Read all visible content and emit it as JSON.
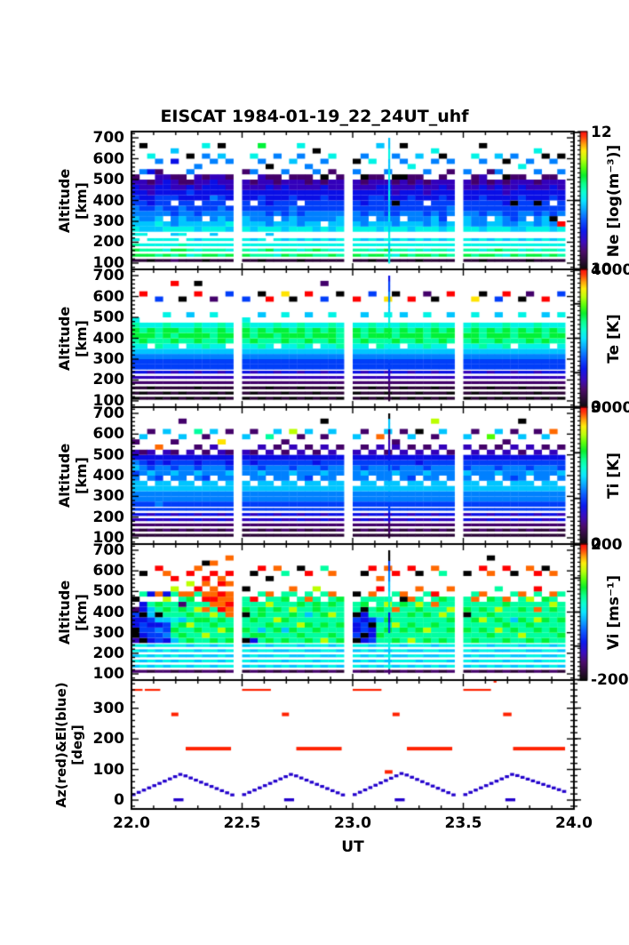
{
  "title": "EISCAT 1984-01-19_22_24UT_uhf",
  "x_axis": {
    "label": "UT",
    "tick_labels": [
      "22.0",
      "22.5",
      "23.0",
      "23.5",
      "24.0"
    ],
    "ticks": [
      22.0,
      22.5,
      23.0,
      23.5,
      24.0
    ],
    "minor_step": 0.1,
    "range": [
      22.0,
      24.0
    ]
  },
  "alt_axis": {
    "ylabel_lines": [
      "Altitude",
      "[km]"
    ],
    "ticks": [
      100,
      200,
      300,
      400,
      500,
      600,
      700
    ],
    "tick_labels": [
      "100",
      "200",
      "300",
      "400",
      "500",
      "600",
      "700"
    ],
    "minor_step": 20,
    "range": [
      70,
      730
    ]
  },
  "time_blocks": [
    22.0,
    22.5,
    23.0,
    23.5
  ],
  "block_duration": 0.46,
  "cols_per_block": 13,
  "encoding": {
    "chars": "0123456789abcdef",
    "empty": ".",
    "alt_base_km": 100,
    "alt_step_km": 25,
    "note": "each string is one time column, chars from 100 km (first) to 700 km (last); char index i maps to value = min + (i/15)*(max-min) of the panel value_range"
  },
  "colormap_stops": [
    {
      "f": 0.0,
      "c": "#000000"
    },
    {
      "f": 0.06,
      "c": "#24002e"
    },
    {
      "f": 0.13,
      "c": "#440066"
    },
    {
      "f": 0.2,
      "c": "#3300bb"
    },
    {
      "f": 0.28,
      "c": "#0011ee"
    },
    {
      "f": 0.36,
      "c": "#0055ff"
    },
    {
      "f": 0.44,
      "c": "#00aaff"
    },
    {
      "f": 0.5,
      "c": "#00e6ff"
    },
    {
      "f": 0.56,
      "c": "#00ffd0"
    },
    {
      "f": 0.62,
      "c": "#00ff88"
    },
    {
      "f": 0.68,
      "c": "#00ee22"
    },
    {
      "f": 0.74,
      "c": "#55ff00"
    },
    {
      "f": 0.8,
      "c": "#bbff00"
    },
    {
      "f": 0.86,
      "c": "#ffee00"
    },
    {
      "f": 0.91,
      "c": "#ff9900"
    },
    {
      "f": 0.96,
      "c": "#ff3300"
    },
    {
      "f": 1.0,
      "c": "#ff0000"
    }
  ],
  "chart_data": [
    {
      "id": "ne",
      "type": "heatmap",
      "value_range": [
        10,
        12
      ],
      "colorbar": {
        "title": "Ne [log(m⁻³)]",
        "top_label": "12",
        "bottom_label": "10",
        "tick_values": [
          10,
          11,
          12
        ]
      },
      "thin_line": {
        "t": 23.165,
        "values": "887788778877887788778877"
      },
      "cells": [
        "1aa98887766554432.......",
        "1a98.87766554433.6....0.",
        "0a988.7766544332.4..8...",
        "19988.787665544332.6....",
        "1a888.87.65554443.......",
        "29a88786655.54332..4.7..",
        "1aa9.887766544322.......",
        "18988.8766554542.6..0...",
        "19887.77655.44333.6.....",
        "0a988.87.65544432...6.8.",
        "1a988787665564443..6....",
        "19988.87766554433...7.0.",
        "1a888.78665.44332..6....",
        "1a988.8776554433.2......",
        "19887.77665.4432.6..8...",
        "09988.87665554333..6..a.",
        "19a8.786655444432.0.....",
        "18888.87.65544322...6...",
        "1a987.7765554443.6......",
        "19988.87766554332..7....",
        "0a887.86655.44332...6.8.",
        "1a988.87665544322.6.....",
        "19a87.7766554433.6...0..",
        "19988.8.665554420..6....",
        "1a887.7766554433.2..8...",
        "19888.87765544332.......",
        "1a988.8766554433.6.0....",
        "19987.86655444320...6...",
        "0a888.87.65554332..8....",
        "1a987.77665554432.....7.",
        "19a88.8765554443.6......",
        "18987.86655043320...6...",
        "1a988.87.65544330..6..0.",
        "19887.77665554322.8.....",
        "0a988.87665544432...7...",
        "1a887.86655.4332.6......",
        "19988.8776554433...6.8..",
        "1a987.76555554432...0...",
        "19888.87.6654433.2.6....",
        "1a988.8776554433.6......",
        "19987.86665544322...8...",
        "0a888.76655554433..6..0.",
        "1a987.87.6554432.2......",
        "19a88.8776554443.6..7...",
        "18987.86655443320..0....",
        "1a988.76555044332...6...",
        "19887.77665554432.8.....",
        "0a988.87.6554433...6....",
        "1a887.8665504432.6...8..",
        "19988.87765544332...0...",
        "1a987.76055.54432..6....",
        "19888.8f.6554433.6..0..."
      ]
    },
    {
      "id": "te",
      "type": "heatmap",
      "value_range": [
        0,
        4000
      ],
      "colorbar": {
        "title": "Te [K]",
        "top_label": "4000",
        "bottom_label": "0",
        "tick_values": [
          0,
          1000,
          2000,
          3000,
          4000
        ]
      },
      "thin_line": {
        "t": 23.165,
        "values": "112234556789aa9887766554"
      },
      "cells": [
        "011234556789aa98........",
        "10123455678aa98.....f...",
        "1102335567.9aa8.........",
        "011234556799998....5....",
        "101234556789aa9.8.......",
        "01123355678a9a8.......f.",
        "1012345567.9a98....0....",
        "011234556789a98.7.......",
        "11023355678aaa9.....f.0.",
        "011234556799a98.........",
        "101234556789998.8..2....",
        "01123355678aaa9.........",
        "1012345567.9a98.....5...",
        "011234556789aa98...5....",
        "10123355678a998.........",
        "011234556799aa8.7...0...",
        "110234556789a98....f....",
        "0112335567.99a9.........",
        "10123455678aaa8.8...d...",
        "011234556789a98....0....",
        "110233556799aa9.........",
        "01123455678a998.7...f...",
        "1012345567.9aa8.........",
        "011233556789a98....5..2.",
        "11023455678aaa9.8.......",
        "011234556799998.....0...",
        "101234556789aa8....f....",
        "01123355678a998.7.......",
        "1102345567.9aa9.....5...",
        "011234556799a98.........",
        "101233556789aa8.8..d....",
        "01123455678a998.....0...",
        "1102345567.9aa9.7.......",
        "011233556789a98....f....",
        "10123455678aaa8.........",
        "011234556799998.8...2...",
        "110233556789aa9....0....",
        "01123455678aa98.........",
        "1012345567.9aa8.7...f...",
        "011233556789a98.........",
        "10123455678aaa9.8..d....",
        "011234556799998.....0...",
        "110233556789aa8.........",
        "01123455678aa98.7..5....",
        "101234556799aa9.....f...",
        "0112335567.9998.........",
        "110234556789aa8.8..0....",
        "01123455678aa98.....2...",
        "101233556789aa9.........",
        "01123455678a998.7..f....",
        "1102345567.9aa8.........",
        "011234556789a98.8...5..."
      ]
    },
    {
      "id": "ti",
      "type": "heatmap",
      "value_range": [
        0,
        3000
      ],
      "colorbar": {
        "title": "Ti [K]",
        "top_label": "3000",
        "bottom_label": "0",
        "tick_values": [
          0,
          1000,
          2000,
          3000
        ]
      },
      "thin_line": {
        "t": 23.165,
        "values": "122345566776655443322770"
      },
      "cells": [
        "12234556677657643.2.....",
        "11234556677.66542..7....",
        "1224355667.675443...2...",
        "1123456667756654.e......",
        "12234556677.66443...7...",
        "1124355667.675542.2.....",
        "1223455667766654...7..2.",
        "11234556677.66543.......",
        "1224355667.67544.2..9...",
        "11234556677566542..2....",
        "12234556677.6654.3..7...",
        "1124355667.666543.d.....",
        "12234556677675442...2...",
        "11234556677.66543..7....",
        "1224355667.666442...2...",
        "1123455667767554.3......",
        "12234556677.66543..9....",
        "1124355667.66654.2..7...",
        "12234556677666542.2.....",
        "11234556677.7554.3..c...",
        "1224355667.666543..2....",
        "1123455667756654.2..7...",
        "12234556677.66442.......",
        "1124355667.67554.3.2..0.",
        "11234556677666543...7...",
        "12234556677.6654.2......",
        "1123455667.666543..7....",
        "1224355667767554.2..2...",
        "11234556677.66543.......",
        "1223455667.66654.3.e....",
        "11243556677666542...7...",
        "12234556677.7554.32.....",
        "1123455667.666543...2...",
        "1224355667756654.2.7....",
        "11234556677.66443...0...",
        "1223455667.67554.2......",
        "11243556677666543..2..c.",
        "12234556677.6654.3..7...",
        "1123455667.666542.......",
        "1224355667767554.3.7....",
        "11234556677.66543...2...",
        "1223455667.66654.2......",
        "11243556677666543..b....",
        "12234556677.7554.2..7...",
        "1123455667.666543.2.....",
        "1224355667756654.3..2...",
        "11234556677666542..7..0.",
        "12234556677.7554.3......",
        "1124355667.666543...2...",
        "1123455667766654.2.7....",
        "12234556677.66543...e...",
        "1124355667.67554.2......"
      ]
    },
    {
      "id": "vi",
      "type": "heatmap",
      "value_range": [
        -200,
        200
      ],
      "colorbar": {
        "title": "Vi [ms⁻¹]",
        "top_label": "200",
        "bottom_label": "-200",
        "tick_values": [
          -200,
          -100,
          0,
          100,
          200
        ]
      },
      "thin_line": {
        "t": 23.165,
        "values": "287878995544998877665500"
      },
      "cells": [
        "2787883004452.0.........",
        "28787804554044.9...0....",
        "17878745545779.4........",
        "2878785564709a.e....f...",
        "278788465579a9c4...e....",
        "18787879a98999.9c.f.....",
        "2887889a9a79a29e........",
        "278787a99c9a99ae.c.f....",
        "18787899a9a9c9.9f...e...",
        "2887889c99a9e9fe.ef..0..",
        "278787a99a9c9efee..f.e..",
        "18787899c9a9feef.fe.....",
        "288788a9a99eefee.e.f..e.",
        "17878709a990a99.0.......",
        "2878784a99a999f....0....",
        "1787889a799aa9.9....f...",
        "288787a99a999c9e..0.....",
        "17887899a9c9a99.....e...",
        "287878a979a999a9...9....",
        "17878899a99ac9.9e.......",
        "2887879a9c999a9.....0...",
        "178878a99a9799e9...f....",
        "28787899a999aa9.c.......",
        "178788c99a9a99.9....9...",
        "2887879a999c9a9e...e....",
        "178878a99a9999a.........",
        "28787805445099.0........",
        "1787884055440a9....0....",
        "2878775440599.9e....f...",
        "1787889a9979a99.f.e.....",
        "28787899a9a99c9.....e...",
        "178788a99c99e9.9...f....",
        "28878799a9999a0e........",
        "178878c99a9a99e.....f...",
        "28787899a999ac9.e..0....",
        "178788a9c99a99.9........",
        "288787999a999e9f....e...",
        "178878a9999c99a....9....",
        "28787899a9a9c99.e.......",
        "17878899a990a99....0....",
        "287878a999a999e9........",
        "17878899a9c9a9.e....f...",
        "2887879a999a99a....e..0.",
        "17887899c9a9c99.9.......",
        "287878a99a999ae.....f...",
        "17878899a97999.9...0....",
        "2887879c99a9a99e........",
        "178878a99a9999c.....e...",
        "28787899a9c9e9.9f..f....",
        "178788a999a999a.....0...",
        "28878799a999ac9e...e....",
        "1788789a99a999.9........"
      ]
    },
    {
      "id": "azel",
      "type": "line",
      "ylabel_lines": [
        "Az(red)&El(blue)",
        "[deg]"
      ],
      "y_range": [
        -29,
        392
      ],
      "y_ticks": [
        0,
        100,
        200,
        300
      ],
      "y_tick_labels": [
        "0",
        "100",
        "200",
        "300"
      ],
      "minor_step": 20,
      "az_color": "#ff2200",
      "el_color": "#2200cc",
      "az_segments": [
        [
          22.0,
          22.05,
          360
        ],
        [
          22.06,
          22.13,
          360
        ],
        [
          22.18,
          22.212,
          280
        ],
        [
          22.245,
          22.45,
          168
        ],
        [
          22.5,
          22.63,
          360
        ],
        [
          22.68,
          22.712,
          280
        ],
        [
          22.745,
          22.95,
          168
        ],
        [
          23.0,
          23.13,
          360
        ],
        [
          23.145,
          23.18,
          92
        ],
        [
          23.18,
          23.212,
          280
        ],
        [
          23.245,
          23.45,
          168
        ],
        [
          23.5,
          23.625,
          360
        ],
        [
          23.637,
          23.65,
          388
        ],
        [
          23.68,
          23.718,
          280
        ],
        [
          23.725,
          23.96,
          168
        ]
      ],
      "el_keyframes": [
        [
          [
            22.0,
            18
          ],
          [
            22.215,
            85
          ],
          [
            22.46,
            13
          ]
        ],
        [
          [
            22.5,
            18
          ],
          [
            22.715,
            85
          ],
          [
            22.96,
            13
          ]
        ],
        [
          [
            23.0,
            18
          ],
          [
            23.215,
            88
          ],
          [
            23.46,
            13
          ]
        ],
        [
          [
            23.5,
            18
          ],
          [
            23.715,
            85
          ],
          [
            23.96,
            25
          ]
        ]
      ],
      "el_zero_dashes": [
        [
          22.19,
          22.235,
          1
        ],
        [
          22.69,
          22.735,
          1
        ],
        [
          23.19,
          23.235,
          1
        ],
        [
          23.69,
          23.735,
          1
        ]
      ]
    }
  ]
}
